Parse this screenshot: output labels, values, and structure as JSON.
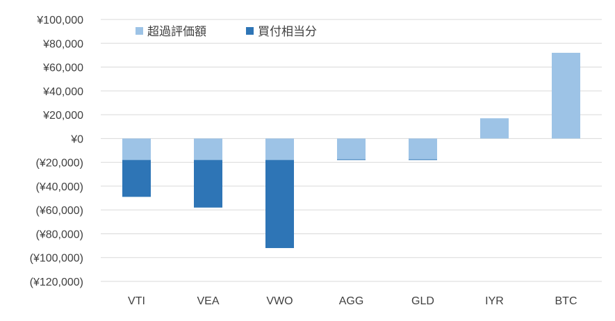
{
  "chart_data": {
    "type": "bar",
    "stacked": true,
    "categories": [
      "VTI",
      "VEA",
      "VWO",
      "AGG",
      "GLD",
      "IYR",
      "BTC"
    ],
    "series": [
      {
        "name": "超過評価額",
        "color": "#9dc3e6",
        "values": [
          -18000,
          -18000,
          -18000,
          -17500,
          -17500,
          17000,
          72000
        ]
      },
      {
        "name": "買付相当分",
        "color": "#2e75b6",
        "values": [
          -31000,
          -40000,
          -74000,
          -500,
          -500,
          0,
          0
        ]
      }
    ],
    "ylim": [
      -120000,
      100000
    ],
    "ytick_step": 20000,
    "yticks": [
      "¥100,000",
      "¥80,000",
      "¥60,000",
      "¥40,000",
      "¥20,000",
      "¥0",
      "(¥20,000)",
      "(¥40,000)",
      "(¥60,000)",
      "(¥80,000)",
      "(¥100,000)",
      "(¥120,000)"
    ],
    "grid": true,
    "legend_position": "top-left"
  }
}
